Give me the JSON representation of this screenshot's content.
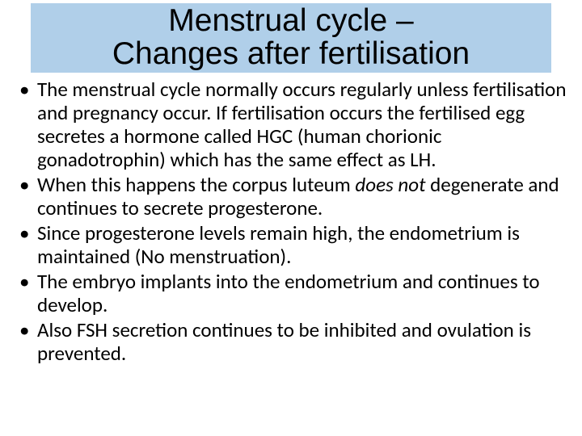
{
  "title": {
    "line1": "Menstrual cycle –",
    "line2": "Changes after fertilisation"
  },
  "bullets": [
    "The menstrual cycle normally occurs regularly unless fertilisation and pregnancy occur. If fertilisation occurs the fertilised egg secretes a hormone called HGC (human chorionic gonadotrophin) which has the same effect as LH.",
    "When this happens the corpus luteum does not degenerate and continues to secrete progesterone.",
    "Since progesterone levels remain high, the endometrium is maintained (No menstruation).",
    "The embryo implants into the endometrium and continues to develop.",
    "Also FSH secretion continues to be inhibited and ovulation is prevented."
  ],
  "italic_phrase": "does not",
  "colors": {
    "title_bg": "#b0cfe9",
    "page_bg": "#ffffff",
    "text": "#000000"
  },
  "fonts": {
    "title_family": "Arial",
    "title_size_pt": 29,
    "body_family": "Calibri",
    "body_size_pt": 19
  }
}
